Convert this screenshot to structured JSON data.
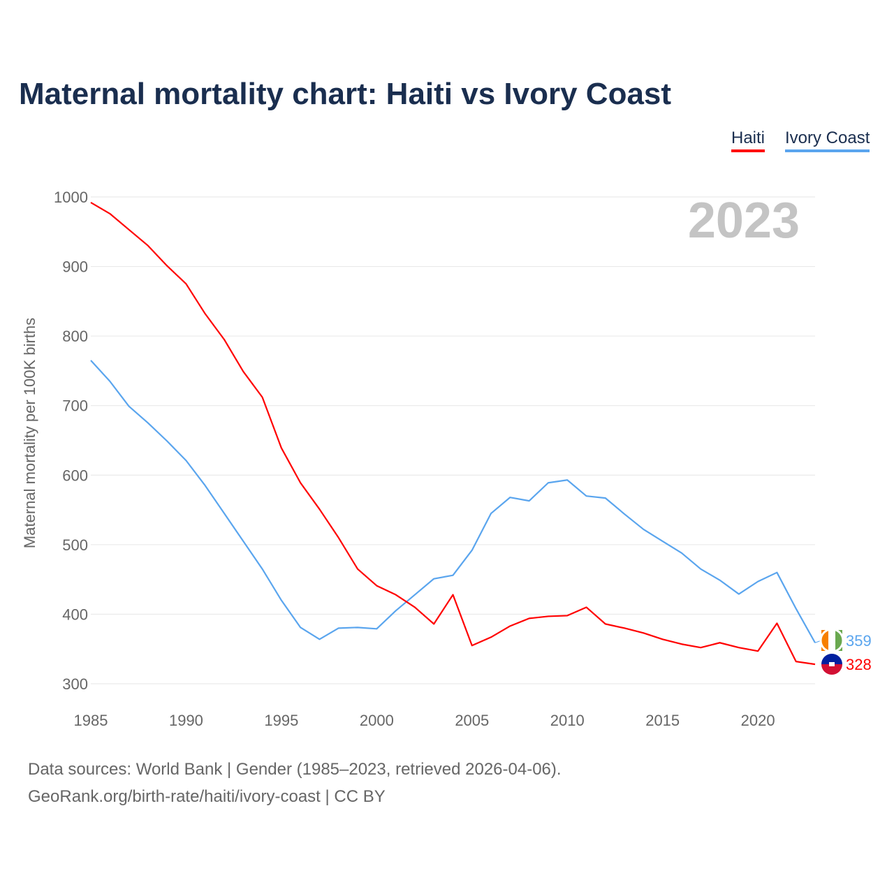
{
  "title": "Maternal mortality chart: Haiti vs Ivory Coast",
  "year_label": "2023",
  "sources": [
    "Data sources: World Bank | Gender (1985–2023, retrieved 2026-04-06).",
    "GeoRank.org/birth-rate/haiti/ivory-coast | CC BY"
  ],
  "chart_data": {
    "type": "line",
    "title": "Maternal mortality chart: Haiti vs Ivory Coast",
    "xlabel": "",
    "ylabel": "Maternal mortality per 100K births",
    "xlim": [
      1985,
      2023
    ],
    "ylim": [
      300,
      1000
    ],
    "xticks": [
      1985,
      1990,
      1995,
      2000,
      2005,
      2010,
      2015,
      2020
    ],
    "yticks": [
      300,
      400,
      500,
      600,
      700,
      800,
      900,
      1000
    ],
    "grid": true,
    "legend": "top-right",
    "x": [
      1985,
      1986,
      1987,
      1988,
      1989,
      1990,
      1991,
      1992,
      1993,
      1994,
      1995,
      1996,
      1997,
      1998,
      1999,
      2000,
      2001,
      2002,
      2003,
      2004,
      2005,
      2006,
      2007,
      2008,
      2009,
      2010,
      2011,
      2012,
      2013,
      2014,
      2015,
      2016,
      2017,
      2018,
      2019,
      2020,
      2021,
      2022,
      2023
    ],
    "series": [
      {
        "name": "Haiti",
        "color": "#ff0000",
        "end_label": "328",
        "values": [
          992,
          976,
          953,
          930,
          901,
          875,
          832,
          795,
          749,
          712,
          639,
          589,
          551,
          510,
          465,
          441,
          428,
          410,
          386,
          428,
          355,
          367,
          383,
          394,
          397,
          398,
          410,
          386,
          380,
          373,
          364,
          357,
          352,
          359,
          352,
          347,
          387,
          332,
          328
        ]
      },
      {
        "name": "Ivory Coast",
        "color": "#5aa5ee",
        "end_label": "359",
        "values": [
          765,
          735,
          699,
          675,
          649,
          621,
          585,
          545,
          505,
          465,
          420,
          381,
          364,
          380,
          381,
          379,
          405,
          428,
          451,
          456,
          492,
          545,
          568,
          563,
          589,
          593,
          570,
          567,
          544,
          522,
          505,
          488,
          465,
          449,
          429,
          447,
          460,
          408,
          359
        ]
      }
    ]
  }
}
